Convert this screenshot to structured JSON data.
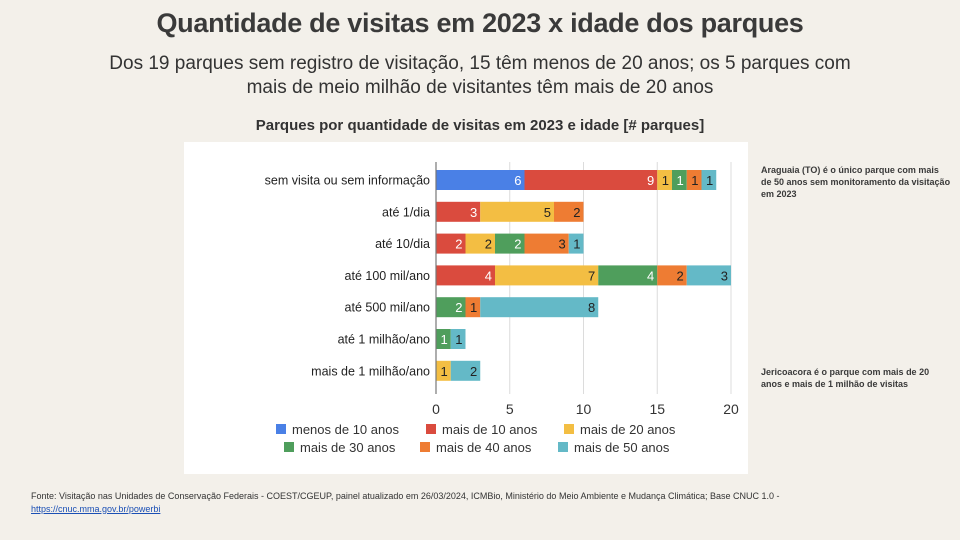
{
  "header": {
    "title": "Quantidade de visitas em 2023 x idade dos parques",
    "subtitle_line1": "Dos 19 parques sem registro de visitação, 15 têm menos de 20 anos; os 5 parques com",
    "subtitle_line2": "mais de meio milhão de visitantes têm mais de 20 anos"
  },
  "notes": {
    "top": "Araguaia (TO) é o único parque com mais de 50 anos sem monitoramento da visitação em 2023",
    "bottom": "Jericoacora é o parque com mais de 20 anos e mais de 1 milhão de visitas"
  },
  "source": {
    "text": "Fonte: Visitação nas Unidades de Conservação Federais - COEST/CGEUP, painel atualizado em 26/03/2024, ICMBio, Ministério do Meio Ambiente e Mudança Climática; Base CNUC 1.0 - ",
    "link": "https://cnuc.mma.gov.br/powerbi"
  },
  "chart_data": {
    "type": "bar",
    "orientation": "horizontal",
    "stacked": true,
    "title": "Parques por quantidade de visitas em 2023 e idade [# parques]",
    "xlabel": "",
    "ylabel": "",
    "xlim": [
      0,
      20
    ],
    "xticks": [
      0,
      5,
      10,
      15,
      20
    ],
    "grid": true,
    "legend_position": "bottom",
    "categories": [
      "sem visita ou sem informação",
      "até 1/dia",
      "até 10/dia",
      "até 100 mil/ano",
      "até 500 mil/ano",
      "até 1 milhão/ano",
      "mais de 1 milhão/ano"
    ],
    "series": [
      {
        "name": "menos de 10 anos",
        "color": "#4a80e6",
        "label_color": "#ffffff",
        "values": [
          6,
          0,
          0,
          0,
          0,
          0,
          0
        ]
      },
      {
        "name": "mais de 10 anos",
        "color": "#da4b3e",
        "label_color": "#ffffff",
        "values": [
          9,
          3,
          2,
          4,
          0,
          0,
          0
        ]
      },
      {
        "name": "mais de 20 anos",
        "color": "#f3be43",
        "label_color": "#222222",
        "values": [
          1,
          5,
          2,
          7,
          0,
          0,
          1
        ]
      },
      {
        "name": "mais de 30 anos",
        "color": "#4f9e5c",
        "label_color": "#ffffff",
        "values": [
          1,
          0,
          2,
          4,
          2,
          1,
          0
        ]
      },
      {
        "name": "mais de 40 anos",
        "color": "#ee7c33",
        "label_color": "#222222",
        "values": [
          1,
          2,
          3,
          2,
          1,
          0,
          0
        ]
      },
      {
        "name": "mais de 50 anos",
        "color": "#64b9c7",
        "label_color": "#222222",
        "values": [
          1,
          0,
          1,
          3,
          8,
          1,
          2
        ]
      }
    ]
  }
}
